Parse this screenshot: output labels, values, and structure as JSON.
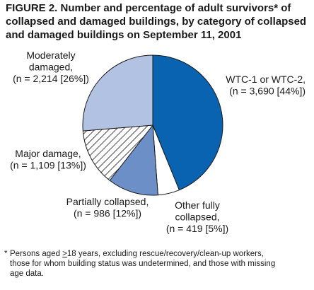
{
  "figure": {
    "title_lines": [
      "FIGURE 2. Number and percentage of adult survivors* of",
      "collapsed and damaged buildings,  by category of collapsed",
      "and damaged buildings on September 11, 2001"
    ]
  },
  "chart_data": {
    "type": "pie",
    "title": "FIGURE 2. Number and percentage of adult survivors* of collapsed and damaged buildings, by category of collapsed and damaged buildings on September 11, 2001",
    "slices": [
      {
        "label": "WTC-1 or WTC-2,",
        "detail": "(n = 3,690 [44%])",
        "value": 3690,
        "percent": 44,
        "color": "#0a63b0",
        "hatch": false
      },
      {
        "label": "Other fully collapsed,",
        "detail": "(n = 419 [5%])",
        "value": 419,
        "percent": 5,
        "color": "#ffffff",
        "hatch": false
      },
      {
        "label": "Partially collapsed,",
        "detail": "(n = 986 [12%])",
        "value": 986,
        "percent": 12,
        "color": "#6b8fc6",
        "hatch": false
      },
      {
        "label": "Major damage,",
        "detail": "(n = 1,109 [13%])",
        "value": 1109,
        "percent": 13,
        "color": "#ffffff",
        "hatch": true
      },
      {
        "label": "Moderately damaged,",
        "detail": "(n = 2,214 [26%])",
        "value": 2214,
        "percent": 26,
        "color": "#b1c2e3",
        "hatch": false
      }
    ],
    "label_lines": [
      [
        "WTC-1 or WTC-2,",
        "(n = 3,690 [44%])"
      ],
      [
        "Other fully",
        "collapsed,",
        "(n = 419 [5%])"
      ],
      [
        "Partially collapsed,",
        "(n = 986 [12%])"
      ],
      [
        "Major damage,",
        "(n = 1,109 [13%])"
      ],
      [
        "Moderately",
        "damaged,",
        "(n = 2,214 [26%])"
      ]
    ],
    "start_angle_deg": 0,
    "direction": "clockwise",
    "legend": "none",
    "edge_color": "#1a1a1a"
  },
  "footnote": {
    "mark": "*",
    "lines": [
      "Persons aged ",
      "18 years, excluding rescue/recovery/clean-up workers,",
      "those for whom building status was undetermined, and those with missing",
      "age data."
    ],
    "geq_symbol": ">"
  }
}
